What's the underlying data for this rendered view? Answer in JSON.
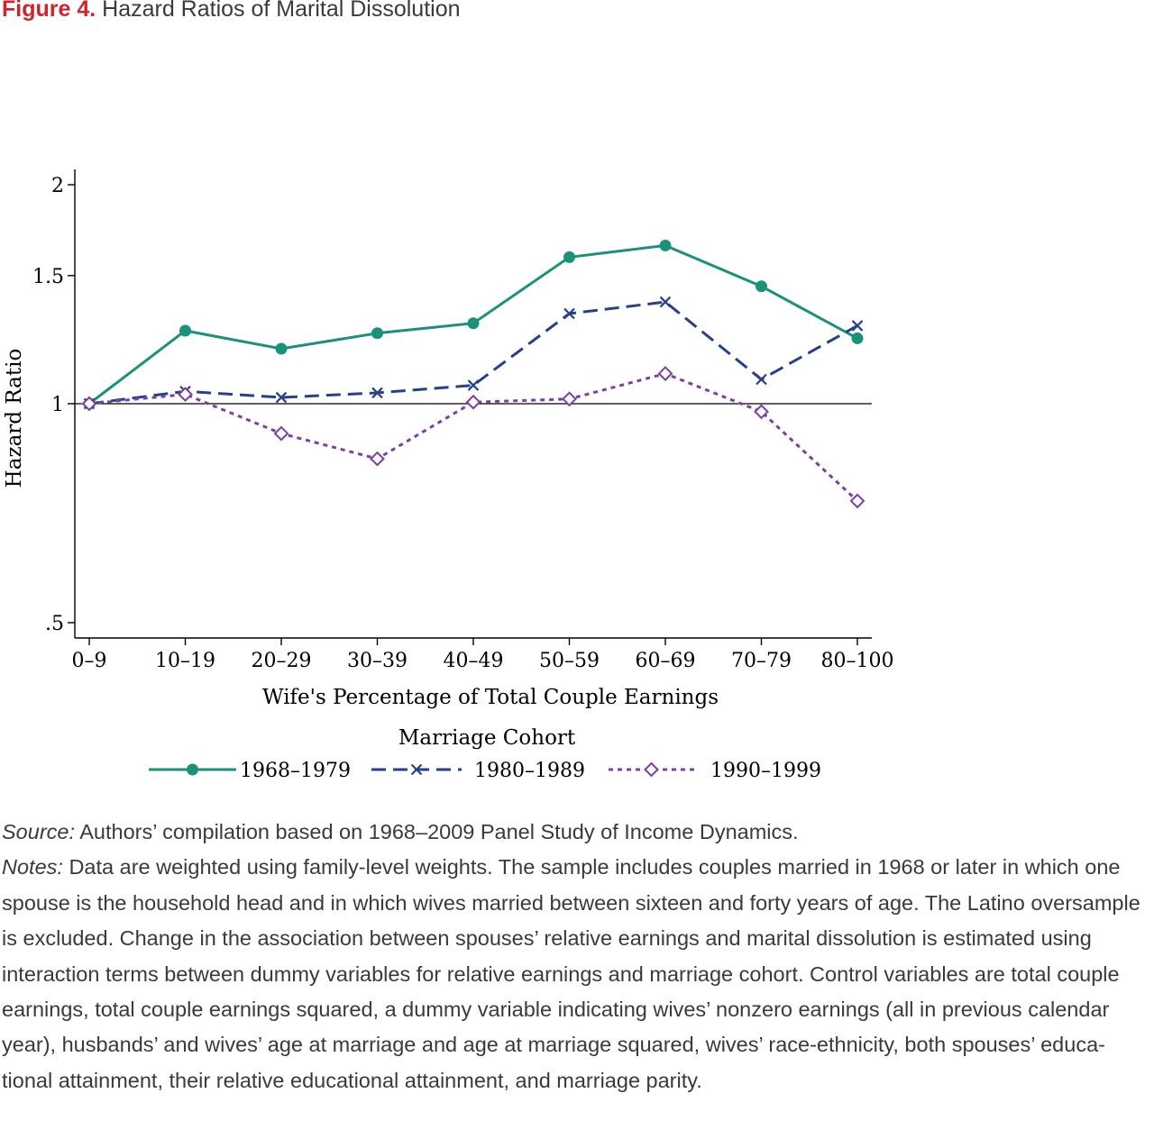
{
  "figure": {
    "label": "Figure 4.",
    "title": "Hazard Ratios of Marital Dissolution"
  },
  "chart_data": {
    "type": "line",
    "ylabel": "Hazard Ratio",
    "xlabel": "Wife's Percentage of Total Couple Earnings",
    "y_scale": "log",
    "ylim": [
      0.48,
      2.1
    ],
    "yticks": [
      0.5,
      1,
      1.5,
      2
    ],
    "ytick_labels": [
      ".5",
      "1",
      "1.5",
      "2"
    ],
    "reference_line": 1,
    "categories": [
      "0–9",
      "10–19",
      "20–29",
      "30–39",
      "40–49",
      "50–59",
      "60–69",
      "70–79",
      "80–100"
    ],
    "legend_title": "Marriage Cohort",
    "legend_position": "bottom",
    "series": [
      {
        "name": "1968–1979",
        "color": "#1a9179",
        "style": "solid",
        "marker": "circle",
        "values": [
          1.0,
          1.26,
          1.19,
          1.25,
          1.29,
          1.59,
          1.65,
          1.45,
          1.23
        ]
      },
      {
        "name": "1980–1989",
        "color": "#27408b",
        "style": "dashed",
        "marker": "x",
        "values": [
          1.0,
          1.04,
          1.02,
          1.035,
          1.06,
          1.33,
          1.38,
          1.08,
          1.28
        ]
      },
      {
        "name": "1990–1999",
        "color": "#7b3fa6",
        "style": "dotted",
        "marker": "diamond",
        "values": [
          1.0,
          1.03,
          0.91,
          0.84,
          1.005,
          1.015,
          1.1,
          0.975,
          0.735
        ]
      }
    ]
  },
  "caption": {
    "source_label": "Source:",
    "source_text": " Authors’ compilation based on 1968–2009 Panel Study of Income Dynamics.",
    "notes_label": "Notes:",
    "notes_text": " Data are weighted using family-level weights. The sample includes couples married in 1968 or later in which one spouse is the household head and in which wives married between sixteen and forty years of age. The Latino oversample is excluded. Change in the association between spouses’ relative earnings and marital dissolution is estimated using interaction terms between dummy variables for relative earnings and marriage cohort. Control variables are total couple earnings, total couple earnings squared, a dummy variable indicating wives’ nonzero earnings (all in previous calendar year), husbands’ and wives’ age at marriage and age at marriage squared, wives’ race-ethnicity, both spouses’ educa-tional attainment, their relative educational attainment, and marriage parity."
  }
}
